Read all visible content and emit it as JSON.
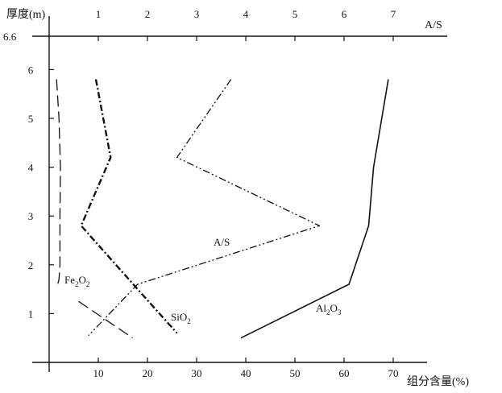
{
  "chart_data": {
    "type": "line",
    "title": "",
    "ylabel": "厚度(m)",
    "xlabel": "组分含量(%)",
    "x2label": "A/S",
    "ylim": [
      0,
      6.6
    ],
    "xlim": [
      0,
      75
    ],
    "x2lim": [
      0,
      7.5
    ],
    "yticks": [
      1,
      2,
      3,
      4,
      5,
      6
    ],
    "ytick_top_label": "6.6",
    "xticks": [
      10,
      20,
      30,
      40,
      50,
      60,
      70
    ],
    "x2ticks": [
      1,
      2,
      3,
      4,
      5,
      6,
      7
    ],
    "grid": false,
    "legend": "inline labels",
    "series": [
      {
        "name": "Fe2O2",
        "axis": "bottom",
        "style": "long-dash",
        "x": [
          1.5,
          2.0,
          2.3,
          2.2,
          2.2,
          2.0,
          1.6,
          1.4
        ],
        "y": [
          5.8,
          5.0,
          4.0,
          3.0,
          2.0,
          1.7,
          1.55,
          1.55
        ]
      },
      {
        "name": "Fe2O2 lower segment",
        "axis": "bottom",
        "style": "long-dash",
        "x": [
          6.0,
          17.0
        ],
        "y": [
          1.25,
          0.5
        ]
      },
      {
        "name": "SiO2",
        "axis": "bottom",
        "style": "dash-dot",
        "x": [
          9.5,
          12.5,
          6.5,
          18.0,
          26.0
        ],
        "y": [
          5.8,
          4.2,
          2.8,
          1.5,
          0.6
        ]
      },
      {
        "name": "A/S",
        "axis": "top",
        "style": "dash-dot-dot",
        "x": [
          3.7,
          2.6,
          5.5,
          1.8,
          0.8
        ],
        "y": [
          5.8,
          4.2,
          2.8,
          1.6,
          0.55
        ]
      },
      {
        "name": "Al2O3",
        "axis": "bottom",
        "style": "solid",
        "x": [
          69.0,
          66.0,
          65.0,
          61.0,
          39.0
        ],
        "y": [
          5.8,
          4.0,
          2.8,
          1.6,
          0.5
        ]
      }
    ],
    "annotations": {
      "fe2o2": {
        "main": "Fe",
        "sub1": "2",
        "mid": "O",
        "sub2": "2"
      },
      "sio2": {
        "main": "SiO",
        "sub1": "2"
      },
      "as": {
        "main": "A/S"
      },
      "al2o3": {
        "main": "Al",
        "sub1": "2",
        "mid": "O",
        "sub2": "3"
      }
    }
  }
}
